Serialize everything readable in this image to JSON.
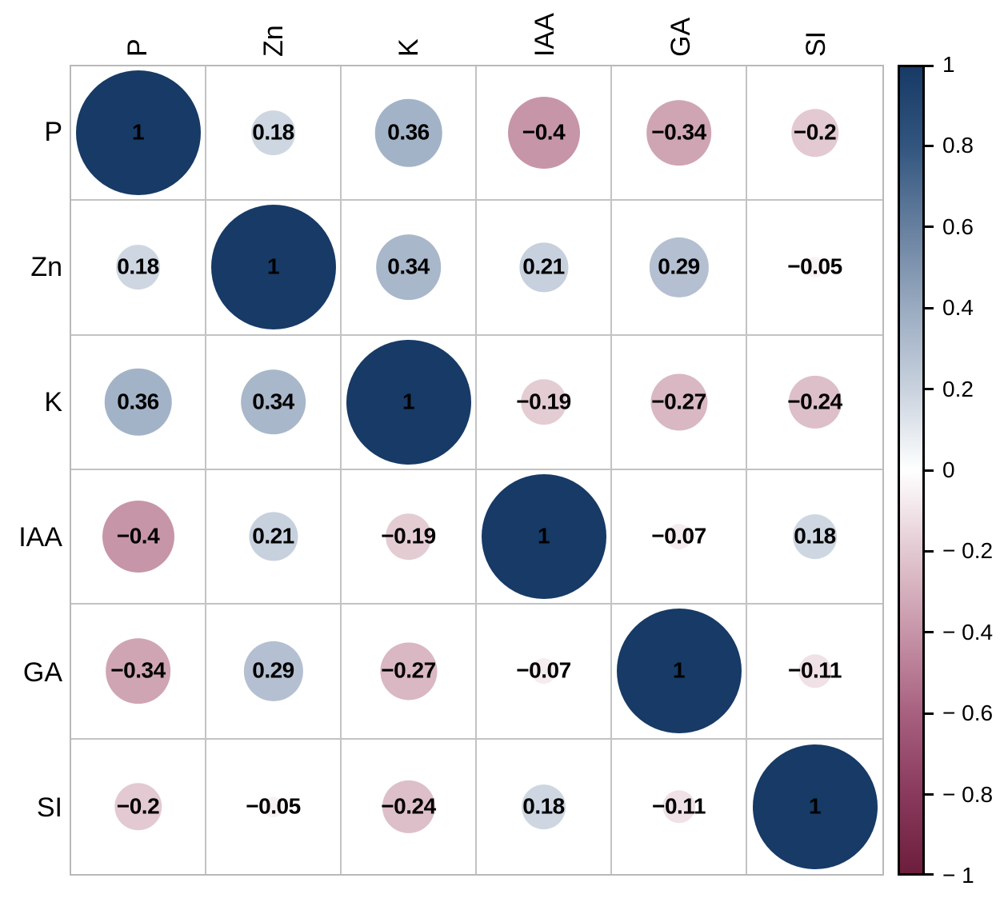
{
  "chart_data": {
    "type": "heatmap",
    "subtype": "correlation-matrix-circles",
    "title": "",
    "variables": [
      "P",
      "Zn",
      "K",
      "IAA",
      "GA",
      "SI"
    ],
    "matrix": [
      [
        1,
        0.18,
        0.36,
        -0.4,
        -0.34,
        -0.2
      ],
      [
        0.18,
        1,
        0.34,
        0.21,
        0.29,
        -0.05
      ],
      [
        0.36,
        0.34,
        1,
        -0.19,
        -0.27,
        -0.24
      ],
      [
        -0.4,
        0.21,
        -0.19,
        1,
        -0.07,
        0.18
      ],
      [
        -0.34,
        0.29,
        -0.27,
        -0.07,
        1,
        -0.11
      ],
      [
        -0.2,
        -0.05,
        -0.24,
        0.18,
        -0.11,
        1
      ]
    ],
    "matrix_display": [
      [
        "1",
        "0.18",
        "0.36",
        "−0.4",
        "−0.34",
        "−0.2"
      ],
      [
        "0.18",
        "1",
        "0.34",
        "0.21",
        "0.29",
        "−0.05"
      ],
      [
        "0.36",
        "0.34",
        "1",
        "−0.19",
        "−0.27",
        "−0.24"
      ],
      [
        "−0.4",
        "0.21",
        "−0.19",
        "1",
        "−0.07",
        "0.18"
      ],
      [
        "−0.34",
        "0.29",
        "−0.27",
        "−0.07",
        "1",
        "−0.11"
      ],
      [
        "−0.2",
        "−0.05",
        "−0.24",
        "0.18",
        "−0.11",
        "1"
      ]
    ],
    "colorbar": {
      "position": "right",
      "min": -1,
      "max": 1,
      "tick_values": [
        1,
        0.8,
        0.6,
        0.4,
        0.2,
        0,
        -0.2,
        -0.4,
        -0.6,
        -0.8,
        -1
      ],
      "tick_labels": [
        "1",
        "0.8",
        "0.6",
        "0.4",
        "0.2",
        "0",
        "− 0.2",
        "− 0.4",
        "− 0.6",
        "− 0.8",
        "− 1"
      ]
    },
    "colors": {
      "positive_end": "#173A66",
      "zero": "#FFFFFF",
      "negative_end": "#6E1E3C",
      "grid_line": "#C3C3C3",
      "tick_color": "#000000",
      "gradient_stops": [
        {
          "t": 1,
          "c": "#173A66"
        },
        {
          "t": 0.8,
          "c": "#33567F"
        },
        {
          "t": 0.6,
          "c": "#67809F"
        },
        {
          "t": 0.4,
          "c": "#9AABC1"
        },
        {
          "t": 0.2,
          "c": "#C9D2DE"
        },
        {
          "t": 0,
          "c": "#FFFFFF"
        },
        {
          "t": -0.2,
          "c": "#E3C9D1"
        },
        {
          "t": -0.4,
          "c": "#C795A8"
        },
        {
          "t": -0.6,
          "c": "#A86180"
        },
        {
          "t": -0.8,
          "c": "#8A3A5D"
        },
        {
          "t": -1,
          "c": "#6E1E3C"
        }
      ]
    },
    "grid": true
  }
}
